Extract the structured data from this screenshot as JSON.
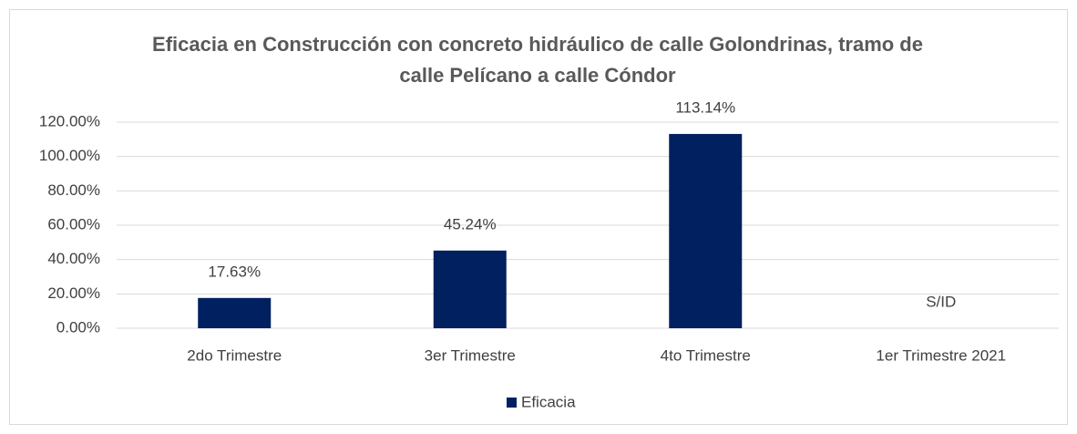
{
  "chart_data": {
    "type": "bar",
    "title": "Eficacia en Construcción con concreto hidráulico de calle Golondrinas, tramo de calle Pelícano a calle Cóndor",
    "categories": [
      "2do Trimestre",
      "3er Trimestre",
      "4to Trimestre",
      "1er Trimestre 2021"
    ],
    "series": [
      {
        "name": "Eficacia",
        "color": "#002060",
        "values": [
          17.63,
          45.24,
          113.14,
          null
        ],
        "value_labels": [
          "17.63%",
          "45.24%",
          "113.14%",
          "S/ID"
        ]
      }
    ],
    "ylim": [
      0,
      120
    ],
    "yticks": [
      {
        "value": 0,
        "label": "0.00%"
      },
      {
        "value": 20,
        "label": "20.00%"
      },
      {
        "value": 40,
        "label": "40.00%"
      },
      {
        "value": 60,
        "label": "60.00%"
      },
      {
        "value": 80,
        "label": "80.00%"
      },
      {
        "value": 100,
        "label": "100.00%"
      },
      {
        "value": 120,
        "label": "120.00%"
      }
    ],
    "grid": true,
    "legend": "bottom"
  }
}
